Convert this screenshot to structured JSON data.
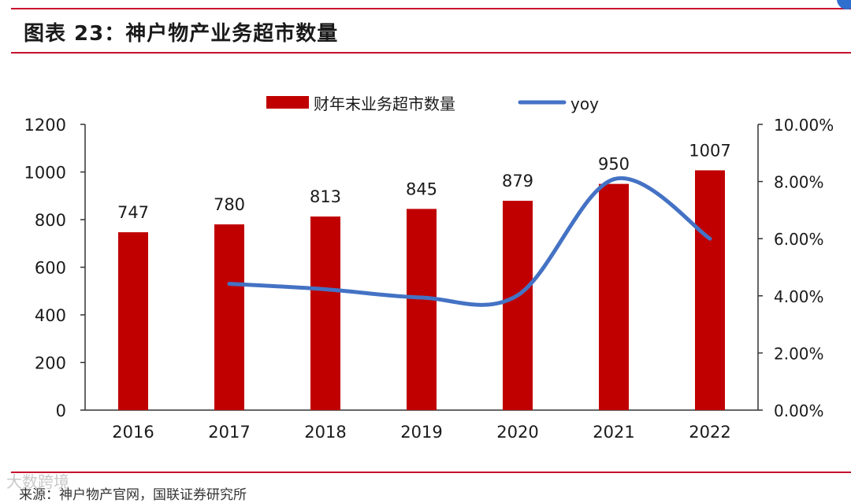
{
  "figure": {
    "title": "图表 23：神户物产业务超市数量",
    "source": "来源：神户物产官网，国联证券研究所",
    "watermark": "大数跨境"
  },
  "colors": {
    "rule": "#c8102e",
    "bar": "#c00000",
    "line": "#4472c4",
    "axis": "#333333",
    "text": "#1a1a1a"
  },
  "chart_data": {
    "type": "bar",
    "categories": [
      "2016",
      "2017",
      "2018",
      "2019",
      "2020",
      "2021",
      "2022"
    ],
    "series": [
      {
        "name": "财年末业务超市数量",
        "type": "bar",
        "axis": "left",
        "values": [
          747,
          780,
          813,
          845,
          879,
          950,
          1007
        ]
      },
      {
        "name": "yoy",
        "type": "line",
        "axis": "right",
        "values": [
          null,
          4.42,
          4.23,
          3.94,
          4.02,
          8.08,
          6.0
        ]
      }
    ],
    "data_labels": [
      "747",
      "780",
      "813",
      "845",
      "879",
      "950",
      "1007"
    ],
    "y_left": {
      "min": 0,
      "max": 1200,
      "step": 200,
      "ticks": [
        "0",
        "200",
        "400",
        "600",
        "800",
        "1000",
        "1200"
      ]
    },
    "y_right": {
      "min": 0,
      "max": 10,
      "step": 2,
      "ticks": [
        "0.00%",
        "2.00%",
        "4.00%",
        "6.00%",
        "8.00%",
        "10.00%"
      ]
    },
    "legend_position": "top",
    "grid": false
  }
}
